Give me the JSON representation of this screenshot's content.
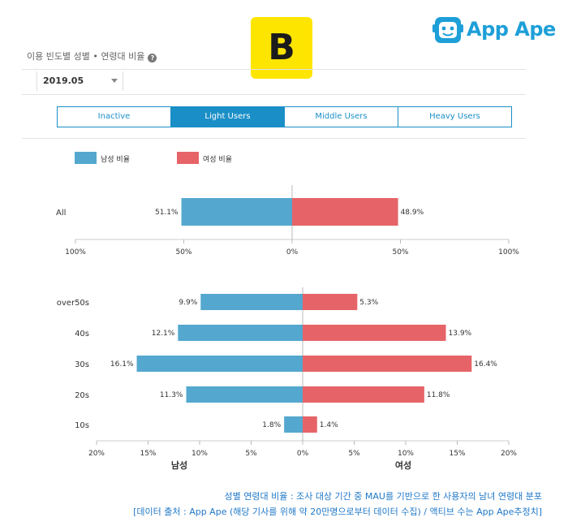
{
  "header": {
    "title": "이용 빈도별 성별 • 연령대 비율",
    "help_icon": "question-circle-icon",
    "brand_letter": "B",
    "appape_name": "App Ape"
  },
  "filter": {
    "date_value": "2019.05"
  },
  "tabs": [
    {
      "label": "Inactive",
      "active": false
    },
    {
      "label": "Light Users",
      "active": true
    },
    {
      "label": "Middle Users",
      "active": false
    },
    {
      "label": "Heavy Users",
      "active": false
    }
  ],
  "colors": {
    "male": "#54a8cf",
    "female": "#e66468",
    "accent": "#1a8fc7",
    "brand_yellow": "#FEE500"
  },
  "legend": {
    "male": "남성 비율",
    "female": "여성 비율"
  },
  "chart_data": [
    {
      "type": "bar",
      "orientation": "horizontal-diverging",
      "categories": [
        "All"
      ],
      "series": [
        {
          "name": "남성 비율",
          "values": [
            51.1
          ]
        },
        {
          "name": "여성 비율",
          "values": [
            48.9
          ]
        }
      ],
      "xlim": [
        -100,
        100
      ],
      "ticks": [
        "100%",
        "50%",
        "0%",
        "50%",
        "100%"
      ],
      "tick_values": [
        -100,
        -50,
        0,
        50,
        100
      ],
      "data_labels": {
        "male": [
          "51.1%"
        ],
        "female": [
          "48.9%"
        ]
      }
    },
    {
      "type": "bar",
      "orientation": "horizontal-diverging",
      "categories": [
        "over50s",
        "40s",
        "30s",
        "20s",
        "10s"
      ],
      "series": [
        {
          "name": "남성 비율",
          "values": [
            9.9,
            12.1,
            16.1,
            11.3,
            1.8
          ]
        },
        {
          "name": "여성 비율",
          "values": [
            5.3,
            13.9,
            16.4,
            11.8,
            1.4
          ]
        }
      ],
      "xlim": [
        -20,
        20
      ],
      "ticks": [
        "20%",
        "15%",
        "10%",
        "5%",
        "0%",
        "5%",
        "10%",
        "15%",
        "20%"
      ],
      "tick_values": [
        -20,
        -15,
        -10,
        -5,
        0,
        5,
        10,
        15,
        20
      ],
      "data_labels": {
        "male": [
          "9.9%",
          "12.1%",
          "16.1%",
          "11.3%",
          "1.8%"
        ],
        "female": [
          "5.3%",
          "13.9%",
          "16.4%",
          "11.8%",
          "1.4%"
        ]
      },
      "xlabel_left": "남성",
      "xlabel_right": "여성"
    }
  ],
  "footer": {
    "caption1": "성별 연령대 비율 : 조사 대상 기간 중 MAU를 기반으로 한 사용자의 남녀 연령대 분포",
    "caption2": "[데이터 출처 : App Ape (해당 기사를 위해 약 20만명으로부터 데이터 수집) / 액티브 수는 App Ape추정치]"
  }
}
